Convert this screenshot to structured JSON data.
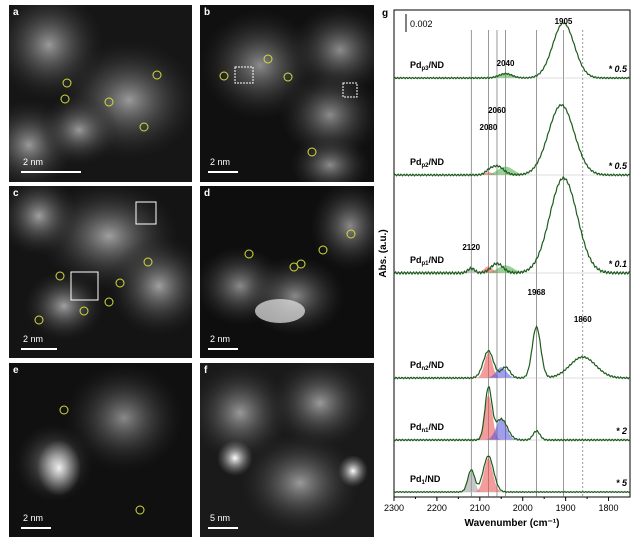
{
  "panels": [
    {
      "id": "a",
      "label": "a",
      "scale": "2 nm"
    },
    {
      "id": "b",
      "label": "b",
      "scale": "2 nm"
    },
    {
      "id": "c",
      "label": "c",
      "scale": "2 nm"
    },
    {
      "id": "d",
      "label": "d",
      "scale": "2 nm"
    },
    {
      "id": "e",
      "label": "e",
      "scale": "2 nm"
    },
    {
      "id": "f",
      "label": "f",
      "scale": "5 nm"
    }
  ],
  "chart_data": {
    "type": "line",
    "panel_label": "g",
    "xlabel": "Wavenumber (cm⁻¹)",
    "ylabel": "Abs. (a.u.)",
    "xlim": [
      2300,
      1750
    ],
    "xticks": [
      "2300",
      "2200",
      "2100",
      "2000",
      "1900",
      "1800"
    ],
    "scale_bar_label": "0.002",
    "reference_lines": [
      2120,
      2080,
      2060,
      2040,
      1968,
      1905,
      1860
    ],
    "series": [
      {
        "name": "Pd_p3/ND",
        "sample": "Pd",
        "sub": "p3",
        "suffix": "/ND",
        "multiplier": "* 0.5",
        "peaks": [
          {
            "pos": 2040,
            "label": "2040"
          },
          {
            "pos": 1905,
            "label": "1905"
          }
        ]
      },
      {
        "name": "Pd_p2/ND",
        "sample": "Pd",
        "sub": "p2",
        "suffix": "/ND",
        "multiplier": "* 0.5",
        "peaks": [
          {
            "pos": 2080,
            "label": "2080"
          },
          {
            "pos": 2060,
            "label": "2060"
          }
        ]
      },
      {
        "name": "Pd_p1/ND",
        "sample": "Pd",
        "sub": "p1",
        "suffix": "/ND",
        "multiplier": "* 0.1",
        "peaks": [
          {
            "pos": 2120,
            "label": "2120"
          }
        ]
      },
      {
        "name": "Pd_n2/ND",
        "sample": "Pd",
        "sub": "n2",
        "suffix": "/ND",
        "multiplier": "",
        "peaks": [
          {
            "pos": 1968,
            "label": "1968"
          },
          {
            "pos": 1860,
            "label": "1860"
          }
        ]
      },
      {
        "name": "Pd_n1/ND",
        "sample": "Pd",
        "sub": "n1",
        "suffix": "/ND",
        "multiplier": "* 2",
        "peaks": []
      },
      {
        "name": "Pd_1/ND",
        "sample": "Pd",
        "sub": "1",
        "suffix": "/ND",
        "multiplier": "* 5",
        "peaks": []
      }
    ]
  }
}
